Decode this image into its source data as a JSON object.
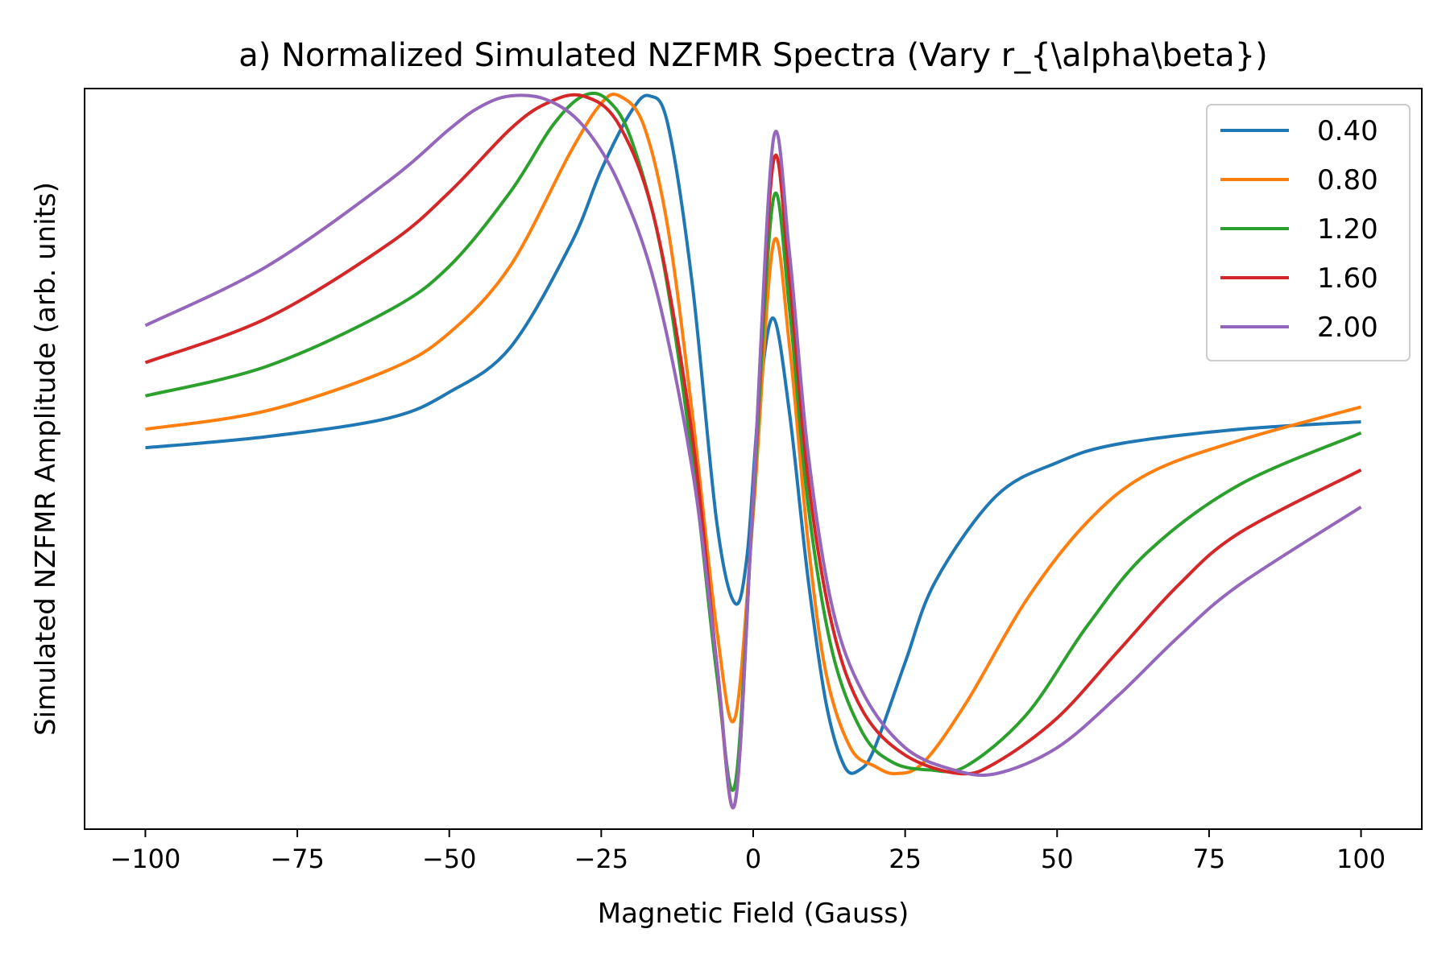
{
  "chart_data": {
    "type": "line",
    "title": "a) Normalized Simulated NZFMR Spectra (Vary r_{\\alpha\\beta})",
    "xlabel": "Magnetic Field (Gauss)",
    "ylabel": "Simulated NZFMR Amplitude (arb. units)",
    "xlim": [
      -110,
      110
    ],
    "ylim": [
      -1.0,
      1.0
    ],
    "xticks": [
      -100,
      -75,
      -50,
      -25,
      0,
      25,
      50,
      75,
      100
    ],
    "xtick_labels": [
      "−100",
      "−75",
      "−50",
      "−25",
      "0",
      "25",
      "50",
      "75",
      "100"
    ],
    "yticks_shown": false,
    "grid": false,
    "legend_position": "top-right",
    "series": [
      {
        "name": "0.40",
        "color": "#1f77b4",
        "x": [
          -100,
          -80,
          -60,
          -50,
          -40,
          -30,
          -25,
          -20,
          -17,
          -14,
          -10,
          -6,
          -3,
          -1,
          1,
          3.3,
          6,
          9,
          12,
          15,
          17.5,
          20,
          25,
          30,
          40,
          50,
          60,
          80,
          100
        ],
        "y": [
          0.03,
          0.06,
          0.11,
          0.18,
          0.3,
          0.58,
          0.78,
          0.94,
          0.98,
          0.9,
          0.47,
          -0.17,
          -0.39,
          -0.26,
          0.16,
          0.38,
          0.12,
          -0.32,
          -0.66,
          -0.83,
          -0.84,
          -0.78,
          -0.55,
          -0.33,
          -0.1,
          -0.01,
          0.04,
          0.08,
          0.1
        ]
      },
      {
        "name": "0.80",
        "color": "#ff7f0e",
        "x": [
          -100,
          -80,
          -60,
          -50,
          -40,
          -30,
          -25,
          -22,
          -18,
          -14,
          -10,
          -6,
          -3,
          0,
          3.3,
          6,
          9,
          12,
          16,
          20,
          23.5,
          28,
          35,
          45,
          55,
          65,
          80,
          100
        ],
        "y": [
          0.08,
          0.13,
          0.24,
          0.34,
          0.52,
          0.83,
          0.96,
          0.98,
          0.9,
          0.62,
          0.12,
          -0.46,
          -0.7,
          -0.15,
          0.58,
          0.3,
          -0.22,
          -0.58,
          -0.78,
          -0.83,
          -0.85,
          -0.82,
          -0.66,
          -0.38,
          -0.17,
          -0.04,
          0.05,
          0.14
        ]
      },
      {
        "name": "1.20",
        "color": "#2ca02c",
        "x": [
          -100,
          -80,
          -60,
          -50,
          -40,
          -33,
          -28,
          -24,
          -20,
          -15,
          -10,
          -6,
          -3,
          0,
          3.3,
          6,
          9,
          13,
          18,
          23,
          29,
          35,
          45,
          55,
          65,
          80,
          100
        ],
        "y": [
          0.17,
          0.25,
          0.4,
          0.52,
          0.72,
          0.9,
          0.98,
          0.97,
          0.86,
          0.55,
          0.0,
          -0.58,
          -0.88,
          -0.12,
          0.7,
          0.4,
          -0.12,
          -0.52,
          -0.74,
          -0.82,
          -0.84,
          -0.83,
          -0.69,
          -0.45,
          -0.25,
          -0.07,
          0.07
        ]
      },
      {
        "name": "1.60",
        "color": "#d62728",
        "x": [
          -100,
          -80,
          -60,
          -50,
          -40,
          -34,
          -28,
          -22,
          -16,
          -10,
          -6,
          -3,
          0,
          3.3,
          6,
          9,
          13,
          18,
          25,
          34,
          40,
          50,
          60,
          70,
          80,
          100
        ],
        "y": [
          0.26,
          0.38,
          0.58,
          0.72,
          0.89,
          0.96,
          0.98,
          0.9,
          0.63,
          0.06,
          -0.55,
          -0.93,
          -0.1,
          0.8,
          0.48,
          -0.05,
          -0.45,
          -0.68,
          -0.8,
          -0.85,
          -0.82,
          -0.7,
          -0.52,
          -0.34,
          -0.2,
          -0.03
        ]
      },
      {
        "name": "2.00",
        "color": "#9467bd",
        "x": [
          -100,
          -80,
          -60,
          -50,
          -45,
          -40,
          -34,
          -28,
          -22,
          -16,
          -10,
          -6,
          -3,
          0,
          3.3,
          6,
          9,
          13,
          18,
          25,
          33,
          40,
          50,
          60,
          70,
          80,
          100
        ],
        "y": [
          0.36,
          0.52,
          0.75,
          0.89,
          0.95,
          0.98,
          0.97,
          0.9,
          0.74,
          0.46,
          -0.03,
          -0.55,
          -0.93,
          -0.1,
          0.86,
          0.55,
          0.02,
          -0.4,
          -0.63,
          -0.78,
          -0.84,
          -0.85,
          -0.78,
          -0.64,
          -0.48,
          -0.34,
          -0.13
        ]
      }
    ]
  }
}
